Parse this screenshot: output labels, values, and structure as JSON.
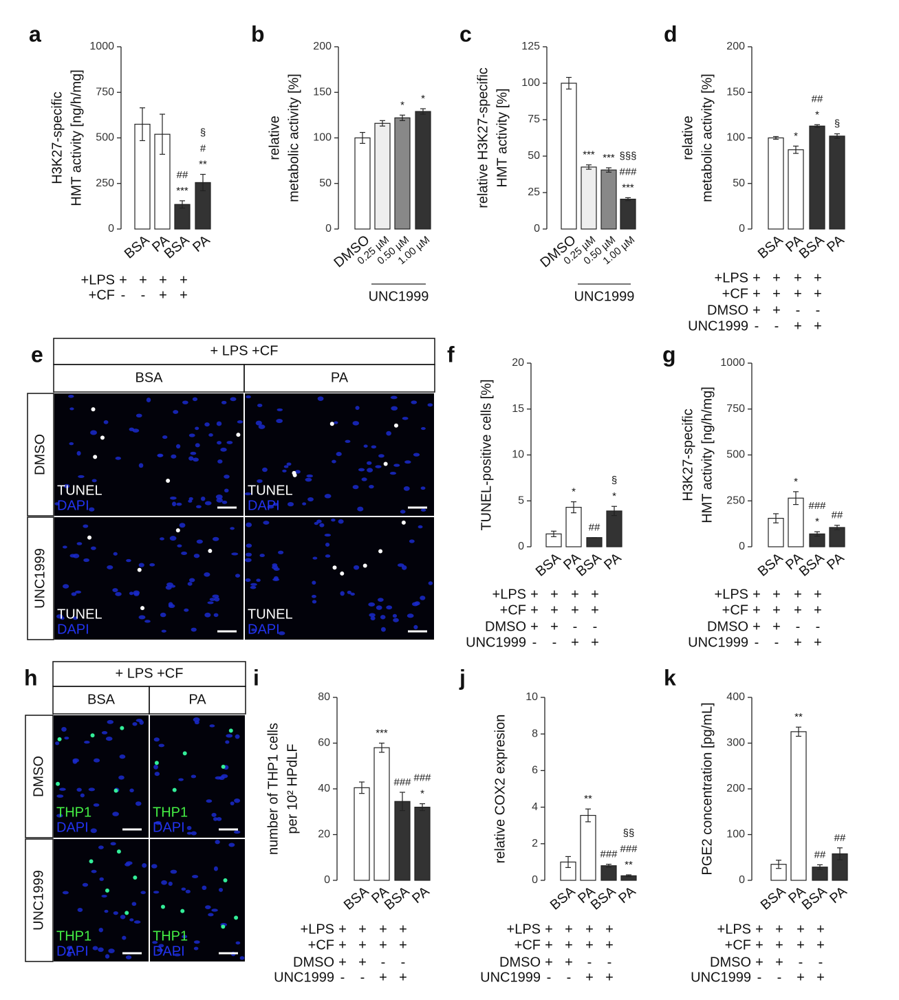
{
  "chart_data": [
    {
      "type": "bar",
      "panel": "a",
      "ylabel": [
        "H3K27-specific",
        "HMT activity [ng/h/mg]"
      ],
      "categories": [
        "BSA",
        "PA",
        "BSA",
        "PA"
      ],
      "values": [
        575,
        520,
        135,
        255
      ],
      "errors": [
        90,
        110,
        20,
        45
      ],
      "colors": [
        "#ffffff",
        "#ffffff",
        "#333333",
        "#333333"
      ],
      "annotations": [
        [],
        [],
        [
          "##",
          "***"
        ],
        [
          "§",
          "#",
          "**"
        ]
      ],
      "ylim": [
        0,
        1000
      ],
      "yticks": [
        0,
        250,
        500,
        750,
        1000
      ],
      "conditions": [
        {
          "label": "+LPS",
          "marks": [
            "+",
            "+",
            "+",
            "+"
          ]
        },
        {
          "label": "+CF",
          "marks": [
            "-",
            "-",
            "+",
            "+"
          ]
        }
      ]
    },
    {
      "type": "bar",
      "panel": "b",
      "ylabel": [
        "relative",
        "metabolic activity [%]"
      ],
      "categories": [
        "DMSO",
        "0.25 µM",
        "0.50 µM",
        "1.00 µM"
      ],
      "values": [
        100,
        116,
        122,
        129
      ],
      "errors": [
        6,
        3,
        3,
        3
      ],
      "colors": [
        "#ffffff",
        "#eeeeee",
        "#888888",
        "#333333"
      ],
      "annotations": [
        [],
        [],
        [
          "*"
        ],
        [
          "*"
        ]
      ],
      "ylim": [
        0,
        200
      ],
      "yticks": [
        0,
        50,
        100,
        150,
        200
      ],
      "group_label": "UNC1999"
    },
    {
      "type": "bar",
      "panel": "c",
      "ylabel": [
        "relative H3K27-specific",
        "HMT activity [%]"
      ],
      "categories": [
        "DMSO",
        "0.25 µM",
        "0.50 µM",
        "1.00 µM"
      ],
      "values": [
        100,
        42.5,
        40.5,
        20.5
      ],
      "errors": [
        4,
        1.5,
        1.5,
        1
      ],
      "colors": [
        "#ffffff",
        "#eeeeee",
        "#888888",
        "#333333"
      ],
      "annotations": [
        [],
        [
          "***"
        ],
        [
          "***"
        ],
        [
          "§§§",
          "###",
          "***"
        ]
      ],
      "ylim": [
        0,
        125
      ],
      "yticks": [
        0,
        25,
        50,
        75,
        100,
        125
      ],
      "group_label": "UNC1999"
    },
    {
      "type": "bar",
      "panel": "d",
      "ylabel": [
        "relative",
        "metabolic activity [%]"
      ],
      "categories": [
        "BSA",
        "PA",
        "BSA",
        "PA"
      ],
      "values": [
        100,
        87,
        113,
        102
      ],
      "errors": [
        1.5,
        4,
        1.5,
        2.5
      ],
      "colors": [
        "#ffffff",
        "#ffffff",
        "#333333",
        "#333333"
      ],
      "annotations": [
        [],
        [
          "*"
        ],
        [
          "##",
          "*"
        ],
        [
          "§"
        ]
      ],
      "ylim": [
        0,
        200
      ],
      "yticks": [
        0,
        50,
        100,
        150,
        200
      ],
      "conditions": [
        {
          "label": "+LPS",
          "marks": [
            "+",
            "+",
            "+",
            "+"
          ]
        },
        {
          "label": "+CF",
          "marks": [
            "+",
            "+",
            "+",
            "+"
          ]
        },
        {
          "label": "DMSO",
          "marks": [
            "+",
            "+",
            "-",
            "-"
          ]
        },
        {
          "label": "UNC1999",
          "marks": [
            "-",
            "-",
            "+",
            "+"
          ]
        }
      ]
    },
    {
      "type": "bar",
      "panel": "f",
      "ylabel": [
        "TUNEL-positive cells [%]"
      ],
      "categories": [
        "BSA",
        "PA",
        "BSA",
        "PA"
      ],
      "values": [
        1.4,
        4.3,
        1.0,
        3.9
      ],
      "errors": [
        0.3,
        0.6,
        0,
        0.5
      ],
      "colors": [
        "#ffffff",
        "#ffffff",
        "#333333",
        "#333333"
      ],
      "annotations": [
        [],
        [
          "*"
        ],
        [
          "##"
        ],
        [
          "§",
          "*"
        ]
      ],
      "ylim": [
        0,
        20
      ],
      "yticks": [
        0,
        5,
        10,
        15,
        20
      ],
      "conditions": [
        {
          "label": "+LPS",
          "marks": [
            "+",
            "+",
            "+",
            "+"
          ]
        },
        {
          "label": "+CF",
          "marks": [
            "+",
            "+",
            "+",
            "+"
          ]
        },
        {
          "label": "DMSO",
          "marks": [
            "+",
            "+",
            "-",
            "-"
          ]
        },
        {
          "label": "UNC1999",
          "marks": [
            "-",
            "-",
            "+",
            "+"
          ]
        }
      ]
    },
    {
      "type": "bar",
      "panel": "g",
      "ylabel": [
        "H3K27-specific",
        "HMT activity [ng/h/mg]"
      ],
      "categories": [
        "BSA",
        "PA",
        "BSA",
        "PA"
      ],
      "values": [
        155,
        265,
        70,
        105
      ],
      "errors": [
        25,
        35,
        12,
        12
      ],
      "colors": [
        "#ffffff",
        "#ffffff",
        "#333333",
        "#333333"
      ],
      "annotations": [
        [],
        [
          "*"
        ],
        [
          "###",
          "*"
        ],
        [
          "##"
        ]
      ],
      "ylim": [
        0,
        1000
      ],
      "yticks": [
        0,
        250,
        500,
        750,
        1000
      ],
      "conditions": [
        {
          "label": "+LPS",
          "marks": [
            "+",
            "+",
            "+",
            "+"
          ]
        },
        {
          "label": "+CF",
          "marks": [
            "+",
            "+",
            "+",
            "+"
          ]
        },
        {
          "label": "DMSO",
          "marks": [
            "+",
            "+",
            "-",
            "-"
          ]
        },
        {
          "label": "UNC1999",
          "marks": [
            "-",
            "-",
            "+",
            "+"
          ]
        }
      ]
    },
    {
      "type": "bar",
      "panel": "i",
      "ylabel": [
        "number of THP1 cells",
        "per 10² HPdLF"
      ],
      "categories": [
        "BSA",
        "PA",
        "BSA",
        "PA"
      ],
      "values": [
        40.5,
        58,
        34.5,
        32
      ],
      "errors": [
        2.5,
        2,
        4,
        1.5
      ],
      "colors": [
        "#ffffff",
        "#ffffff",
        "#333333",
        "#333333"
      ],
      "annotations": [
        [],
        [
          "***"
        ],
        [
          "###"
        ],
        [
          "###",
          "*"
        ]
      ],
      "ylim": [
        0,
        80
      ],
      "yticks": [
        0,
        20,
        40,
        60,
        80
      ],
      "conditions": [
        {
          "label": "+LPS",
          "marks": [
            "+",
            "+",
            "+",
            "+"
          ]
        },
        {
          "label": "+CF",
          "marks": [
            "+",
            "+",
            "+",
            "+"
          ]
        },
        {
          "label": "DMSO",
          "marks": [
            "+",
            "+",
            "-",
            "-"
          ]
        },
        {
          "label": "UNC1999",
          "marks": [
            "-",
            "-",
            "+",
            "+"
          ]
        }
      ]
    },
    {
      "type": "bar",
      "panel": "j",
      "ylabel": [
        "relative COX2 expresion"
      ],
      "categories": [
        "BSA",
        "PA",
        "BSA",
        "PA"
      ],
      "values": [
        1.0,
        3.55,
        0.8,
        0.25
      ],
      "errors": [
        0.3,
        0.35,
        0.08,
        0.05
      ],
      "colors": [
        "#ffffff",
        "#ffffff",
        "#333333",
        "#333333"
      ],
      "annotations": [
        [],
        [
          "**"
        ],
        [
          "###"
        ],
        [
          "§§",
          "###",
          "**"
        ]
      ],
      "ylim": [
        0,
        10
      ],
      "yticks": [
        0,
        2,
        4,
        6,
        8,
        10
      ],
      "conditions": [
        {
          "label": "+LPS",
          "marks": [
            "+",
            "+",
            "+",
            "+"
          ]
        },
        {
          "label": "+CF",
          "marks": [
            "+",
            "+",
            "+",
            "+"
          ]
        },
        {
          "label": "DMSO",
          "marks": [
            "+",
            "+",
            "-",
            "-"
          ]
        },
        {
          "label": "UNC1999",
          "marks": [
            "-",
            "-",
            "+",
            "+"
          ]
        }
      ]
    },
    {
      "type": "bar",
      "panel": "k",
      "ylabel": [
        "PGE2 concentration [pg/mL]"
      ],
      "categories": [
        "BSA",
        "PA",
        "BSA",
        "PA"
      ],
      "values": [
        35,
        325,
        29,
        58
      ],
      "errors": [
        9,
        10,
        5,
        13
      ],
      "colors": [
        "#ffffff",
        "#ffffff",
        "#333333",
        "#333333"
      ],
      "annotations": [
        [],
        [
          "**"
        ],
        [
          "##"
        ],
        [
          "##"
        ]
      ],
      "ylim": [
        0,
        400
      ],
      "yticks": [
        0,
        100,
        200,
        300,
        400
      ],
      "conditions": [
        {
          "label": "+LPS",
          "marks": [
            "+",
            "+",
            "+",
            "+"
          ]
        },
        {
          "label": "+CF",
          "marks": [
            "+",
            "+",
            "+",
            "+"
          ]
        },
        {
          "label": "DMSO",
          "marks": [
            "+",
            "+",
            "-",
            "-"
          ]
        },
        {
          "label": "UNC1999",
          "marks": [
            "-",
            "-",
            "+",
            "+"
          ]
        }
      ]
    }
  ],
  "image_panels": [
    {
      "panel": "e",
      "header": "+ LPS +CF",
      "columns": [
        "BSA",
        "PA"
      ],
      "rows": [
        "DMSO",
        "UNC1999"
      ],
      "stain": "TUNEL",
      "counterstain": "DAPI"
    },
    {
      "panel": "h",
      "header": "+ LPS +CF",
      "columns": [
        "BSA",
        "PA"
      ],
      "rows": [
        "DMSO",
        "UNC1999"
      ],
      "stain": "THP1",
      "counterstain": "DAPI"
    }
  ]
}
